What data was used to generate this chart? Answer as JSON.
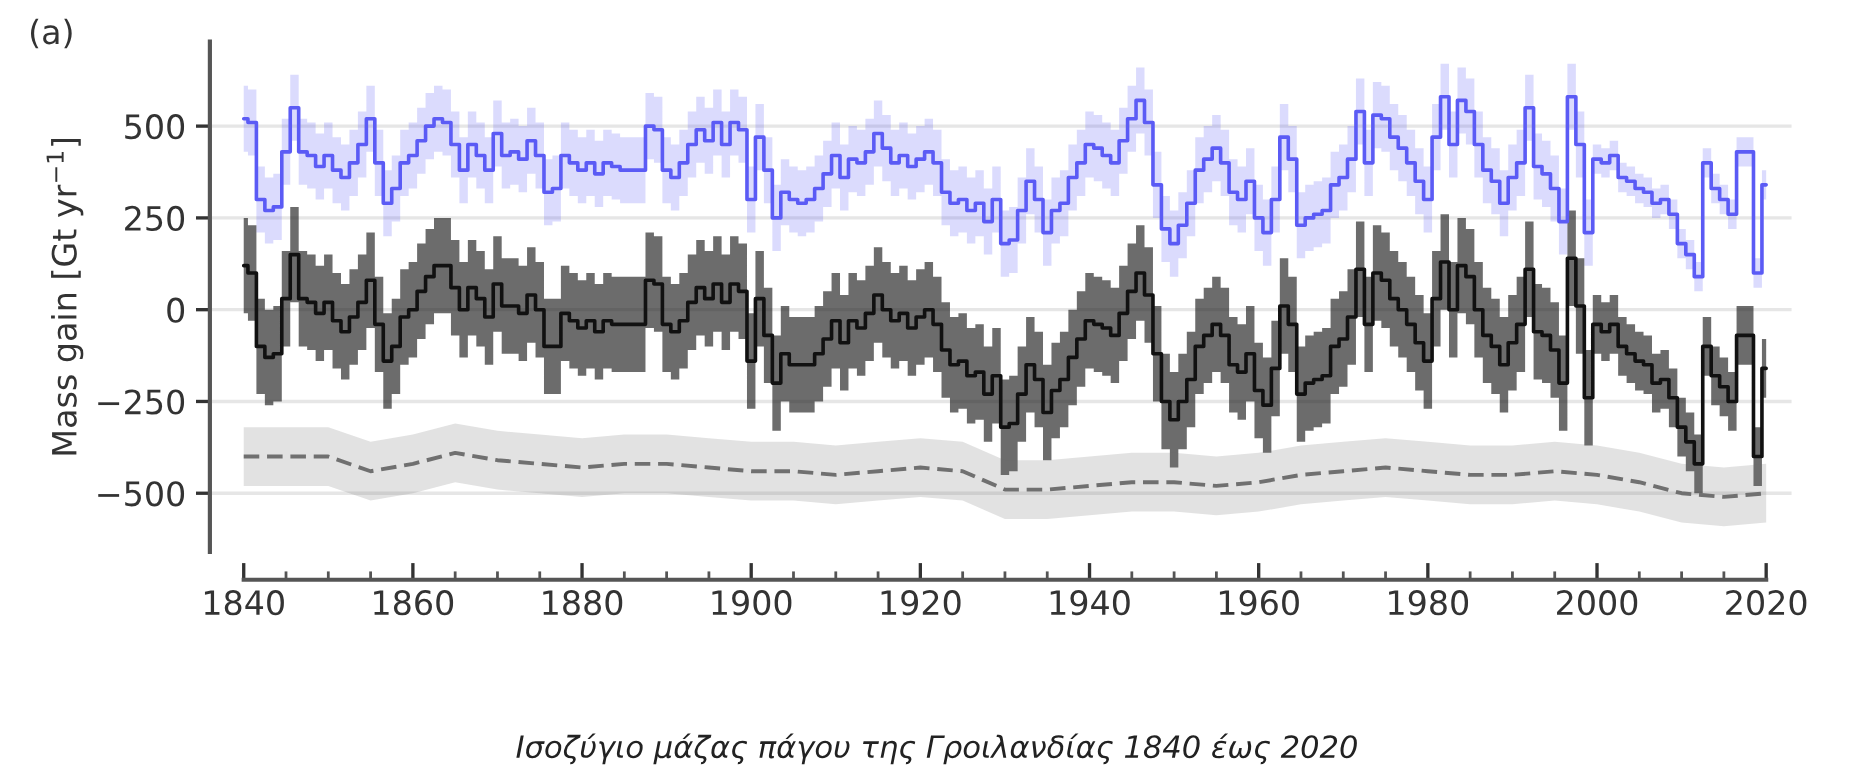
{
  "chart_data": {
    "type": "step",
    "ylabel": "Mass gain [Gt yr$^{−1}$]",
    "annotations": [
      "(a)",
      "Ισοζύγιο μάζας πάγου της Γροιλανδίας 1840 έως 2020"
    ],
    "xlim": [
      1836,
      2023
    ],
    "ylim": [
      -660,
      730
    ],
    "xticks": [
      1840,
      {
        "value": 1845,
        "label": null
      },
      {
        "value": 1850,
        "label": null
      },
      {
        "value": 1855,
        "label": null
      },
      1860,
      {
        "value": 1865,
        "label": null
      },
      {
        "value": 1870,
        "label": null
      },
      {
        "value": 1875,
        "label": null
      },
      1880,
      {
        "value": 1885,
        "label": null
      },
      {
        "value": 1890,
        "label": null
      },
      {
        "value": 1895,
        "label": null
      },
      1900,
      {
        "value": 1905,
        "label": null
      },
      {
        "value": 1910,
        "label": null
      },
      {
        "value": 1915,
        "label": null
      },
      1920,
      {
        "value": 1925,
        "label": null
      },
      {
        "value": 1930,
        "label": null
      },
      {
        "value": 1935,
        "label": null
      },
      1940,
      {
        "value": 1945,
        "label": null
      },
      {
        "value": 1950,
        "label": null
      },
      {
        "value": 1955,
        "label": null
      },
      1960,
      {
        "value": 1965,
        "label": null
      },
      {
        "value": 1970,
        "label": null
      },
      {
        "value": 1975,
        "label": null
      },
      1980,
      {
        "value": 1985,
        "label": null
      },
      {
        "value": 1990,
        "label": null
      },
      {
        "value": 1995,
        "label": null
      },
      2000,
      {
        "value": 2005,
        "label": null
      },
      {
        "value": 2010,
        "label": null
      },
      {
        "value": 2015,
        "label": null
      },
      2020
    ],
    "yticks": [
      {
        "value": -500,
        "label": "−500"
      },
      {
        "value": -250,
        "label": "−250"
      },
      0,
      250,
      500
    ],
    "grid": "y",
    "x": [
      1840,
      1841,
      1842,
      1843,
      1844,
      1845,
      1846,
      1847,
      1848,
      1849,
      1850,
      1851,
      1852,
      1853,
      1854,
      1855,
      1856,
      1857,
      1858,
      1859,
      1860,
      1861,
      1862,
      1863,
      1864,
      1865,
      1866,
      1867,
      1868,
      1869,
      1870,
      1871,
      1872,
      1873,
      1874,
      1875,
      1876,
      1877,
      1878,
      1879,
      1880,
      1881,
      1882,
      1883,
      1884,
      1885,
      1886,
      1887,
      1888,
      1889,
      1890,
      1891,
      1892,
      1893,
      1894,
      1895,
      1896,
      1897,
      1898,
      1899,
      1900,
      1901,
      1902,
      1903,
      1904,
      1905,
      1906,
      1907,
      1908,
      1909,
      1910,
      1911,
      1912,
      1913,
      1914,
      1915,
      1916,
      1917,
      1918,
      1919,
      1920,
      1921,
      1922,
      1923,
      1924,
      1925,
      1926,
      1927,
      1928,
      1929,
      1930,
      1931,
      1932,
      1933,
      1934,
      1935,
      1936,
      1937,
      1938,
      1939,
      1940,
      1941,
      1942,
      1943,
      1944,
      1945,
      1946,
      1947,
      1948,
      1949,
      1950,
      1951,
      1952,
      1953,
      1954,
      1955,
      1956,
      1957,
      1958,
      1959,
      1960,
      1961,
      1962,
      1963,
      1964,
      1965,
      1966,
      1967,
      1968,
      1969,
      1970,
      1971,
      1972,
      1973,
      1974,
      1975,
      1976,
      1977,
      1978,
      1979,
      1980,
      1981,
      1982,
      1983,
      1984,
      1985,
      1986,
      1987,
      1988,
      1989,
      1990,
      1991,
      1992,
      1993,
      1994,
      1995,
      1996,
      1997,
      1998,
      1999,
      2000,
      2001,
      2002,
      2003,
      2004,
      2005,
      2006,
      2007,
      2008,
      2009,
      2010,
      2011,
      2012,
      2013,
      2014,
      2015,
      2016,
      2017,
      2018,
      2019,
      2020
    ],
    "series": [
      {
        "color": "#5b5bf5",
        "values": [
          520,
          510,
          300,
          270,
          280,
          430,
          550,
          430,
          420,
          390,
          420,
          380,
          360,
          400,
          450,
          520,
          400,
          290,
          330,
          400,
          420,
          460,
          500,
          520,
          510,
          450,
          380,
          450,
          420,
          380,
          480,
          420,
          430,
          410,
          460,
          420,
          320,
          330,
          420,
          400,
          380,
          400,
          370,
          400,
          390,
          380,
          380,
          380,
          500,
          490,
          380,
          360,
          400,
          450,
          490,
          460,
          510,
          450,
          510,
          490,
          300,
          470,
          380,
          250,
          320,
          300,
          290,
          300,
          330,
          370,
          420,
          360,
          410,
          400,
          430,
          480,
          440,
          400,
          420,
          390,
          410,
          430,
          400,
          320,
          290,
          300,
          270,
          290,
          240,
          300,
          180,
          190,
          270,
          350,
          300,
          210,
          270,
          290,
          360,
          400,
          450,
          440,
          420,
          400,
          460,
          520,
          570,
          510,
          340,
          220,
          180,
          230,
          290,
          380,
          410,
          440,
          400,
          320,
          300,
          350,
          250,
          210,
          300,
          470,
          410,
          230,
          250,
          260,
          270,
          340,
          360,
          410,
          540,
          400,
          530,
          520,
          470,
          440,
          400,
          350,
          300,
          470,
          580,
          450,
          570,
          540,
          450,
          380,
          350,
          290,
          360,
          400,
          550,
          390,
          370,
          330,
          240,
          580,
          450,
          210,
          410,
          400,
          420,
          360,
          350,
          330,
          320,
          290,
          300,
          260,
          180,
          150,
          90,
          400,
          330,
          300,
          260,
          430,
          430,
          100,
          340
        ],
        "upper": [
          610,
          600,
          390,
          360,
          370,
          520,
          640,
          520,
          510,
          480,
          510,
          470,
          450,
          490,
          540,
          610,
          490,
          380,
          420,
          490,
          510,
          550,
          590,
          610,
          600,
          540,
          470,
          540,
          510,
          470,
          570,
          510,
          520,
          500,
          550,
          510,
          410,
          420,
          510,
          490,
          470,
          490,
          460,
          490,
          480,
          470,
          470,
          470,
          590,
          580,
          470,
          450,
          490,
          540,
          580,
          550,
          600,
          540,
          600,
          580,
          390,
          560,
          470,
          340,
          410,
          390,
          380,
          390,
          420,
          460,
          510,
          450,
          500,
          490,
          520,
          570,
          530,
          490,
          510,
          480,
          500,
          520,
          490,
          410,
          380,
          390,
          360,
          380,
          330,
          390,
          270,
          280,
          360,
          440,
          390,
          300,
          360,
          380,
          450,
          490,
          540,
          530,
          510,
          490,
          550,
          610,
          660,
          600,
          430,
          310,
          270,
          320,
          380,
          470,
          500,
          530,
          490,
          410,
          390,
          440,
          340,
          300,
          390,
          560,
          500,
          320,
          340,
          350,
          360,
          430,
          450,
          500,
          630,
          490,
          620,
          610,
          560,
          530,
          490,
          440,
          390,
          560,
          670,
          540,
          660,
          630,
          540,
          470,
          440,
          380,
          450,
          490,
          640,
          480,
          460,
          420,
          330,
          670,
          540,
          300,
          450,
          440,
          460,
          400,
          390,
          370,
          360,
          330,
          340,
          300,
          220,
          190,
          130,
          440,
          370,
          340,
          300,
          470,
          470,
          140,
          380
        ],
        "lower": [
          430,
          420,
          210,
          180,
          190,
          340,
          460,
          340,
          330,
          300,
          330,
          290,
          270,
          310,
          360,
          430,
          310,
          200,
          240,
          310,
          330,
          370,
          410,
          430,
          420,
          360,
          290,
          360,
          330,
          290,
          390,
          330,
          340,
          320,
          370,
          330,
          230,
          240,
          330,
          310,
          290,
          310,
          280,
          310,
          300,
          290,
          290,
          290,
          410,
          400,
          290,
          270,
          310,
          360,
          400,
          370,
          420,
          360,
          420,
          400,
          210,
          380,
          290,
          160,
          230,
          210,
          200,
          210,
          240,
          280,
          330,
          270,
          320,
          310,
          340,
          390,
          350,
          310,
          330,
          300,
          320,
          340,
          310,
          230,
          200,
          210,
          180,
          200,
          150,
          210,
          90,
          100,
          180,
          260,
          210,
          120,
          180,
          200,
          270,
          310,
          360,
          350,
          330,
          310,
          370,
          430,
          480,
          420,
          250,
          130,
          90,
          140,
          200,
          290,
          320,
          350,
          310,
          230,
          210,
          260,
          160,
          120,
          210,
          380,
          320,
          140,
          160,
          170,
          180,
          250,
          270,
          320,
          450,
          310,
          440,
          430,
          380,
          350,
          310,
          260,
          210,
          380,
          490,
          360,
          480,
          450,
          360,
          290,
          260,
          200,
          270,
          310,
          460,
          300,
          280,
          240,
          150,
          490,
          360,
          120,
          370,
          360,
          380,
          320,
          310,
          290,
          280,
          250,
          260,
          220,
          140,
          110,
          50,
          360,
          290,
          260,
          220,
          390,
          390,
          60,
          300
        ]
      },
      {
        "color": "#111111",
        "values": [
          120,
          100,
          -100,
          -130,
          -120,
          30,
          150,
          30,
          20,
          -10,
          20,
          -30,
          -60,
          -20,
          20,
          80,
          -40,
          -140,
          -100,
          -20,
          0,
          50,
          90,
          120,
          120,
          60,
          0,
          60,
          30,
          -20,
          70,
          10,
          10,
          -10,
          40,
          0,
          -100,
          -100,
          -10,
          -30,
          -50,
          -30,
          -60,
          -30,
          -40,
          -40,
          -40,
          -40,
          80,
          70,
          -40,
          -60,
          -30,
          20,
          60,
          30,
          70,
          20,
          70,
          50,
          -140,
          30,
          -70,
          -200,
          -120,
          -150,
          -150,
          -150,
          -120,
          -80,
          -30,
          -90,
          -30,
          -50,
          -10,
          40,
          0,
          -30,
          -10,
          -50,
          -20,
          0,
          -40,
          -110,
          -150,
          -140,
          -180,
          -170,
          -230,
          -180,
          -320,
          -310,
          -230,
          -150,
          -190,
          -280,
          -220,
          -190,
          -130,
          -80,
          -30,
          -40,
          -50,
          -70,
          -10,
          50,
          100,
          40,
          -120,
          -250,
          -300,
          -250,
          -190,
          -100,
          -70,
          -40,
          -70,
          -150,
          -170,
          -120,
          -220,
          -260,
          -160,
          10,
          -40,
          -230,
          -200,
          -190,
          -180,
          -100,
          -80,
          -20,
          110,
          -40,
          100,
          80,
          30,
          0,
          -40,
          -90,
          -140,
          30,
          130,
          0,
          120,
          90,
          0,
          -70,
          -100,
          -150,
          -90,
          -40,
          110,
          -60,
          -70,
          -110,
          -200,
          140,
          10,
          -240,
          -40,
          -60,
          -40,
          -100,
          -120,
          -140,
          -150,
          -200,
          -190,
          -240,
          -320,
          -360,
          -420,
          -100,
          -180,
          -210,
          -250,
          -70,
          -70,
          -400,
          -160
        ],
        "upper": [
          250,
          230,
          30,
          0,
          10,
          160,
          280,
          160,
          150,
          120,
          150,
          100,
          70,
          110,
          150,
          210,
          90,
          -10,
          30,
          110,
          130,
          180,
          220,
          250,
          250,
          190,
          130,
          190,
          160,
          110,
          200,
          140,
          140,
          120,
          170,
          130,
          30,
          30,
          120,
          100,
          80,
          100,
          70,
          100,
          90,
          90,
          90,
          90,
          210,
          200,
          90,
          70,
          100,
          150,
          190,
          160,
          200,
          150,
          200,
          180,
          -10,
          160,
          60,
          -70,
          10,
          -20,
          -20,
          -20,
          10,
          50,
          100,
          40,
          100,
          80,
          120,
          170,
          130,
          100,
          120,
          80,
          110,
          130,
          90,
          20,
          -20,
          -10,
          -50,
          -40,
          -100,
          -50,
          -190,
          -180,
          -100,
          -20,
          -60,
          -150,
          -90,
          -60,
          0,
          50,
          100,
          90,
          80,
          60,
          120,
          180,
          230,
          170,
          10,
          -120,
          -170,
          -120,
          -60,
          30,
          60,
          90,
          60,
          -20,
          -40,
          10,
          -90,
          -130,
          -30,
          140,
          90,
          -100,
          -70,
          -60,
          -50,
          30,
          50,
          110,
          240,
          90,
          230,
          210,
          160,
          130,
          90,
          40,
          -10,
          160,
          260,
          130,
          250,
          220,
          130,
          60,
          30,
          -20,
          40,
          90,
          240,
          70,
          60,
          20,
          -70,
          270,
          140,
          -110,
          40,
          20,
          40,
          -20,
          -40,
          -60,
          -70,
          -120,
          -110,
          -160,
          -240,
          -280,
          -340,
          -20,
          -100,
          -130,
          -170,
          10,
          10,
          -320,
          -80
        ],
        "lower": [
          -10,
          -30,
          -230,
          -260,
          -250,
          -100,
          20,
          -100,
          -110,
          -140,
          -110,
          -160,
          -190,
          -150,
          -110,
          -50,
          -170,
          -270,
          -230,
          -150,
          -130,
          -80,
          -40,
          -10,
          -10,
          -70,
          -130,
          -70,
          -100,
          -150,
          -60,
          -120,
          -120,
          -140,
          -90,
          -130,
          -230,
          -230,
          -140,
          -160,
          -180,
          -160,
          -190,
          -160,
          -170,
          -170,
          -170,
          -170,
          -50,
          -60,
          -170,
          -190,
          -160,
          -110,
          -70,
          -100,
          -60,
          -110,
          -60,
          -80,
          -270,
          -100,
          -200,
          -330,
          -250,
          -280,
          -280,
          -280,
          -250,
          -210,
          -160,
          -220,
          -160,
          -180,
          -140,
          -90,
          -130,
          -160,
          -140,
          -180,
          -150,
          -130,
          -170,
          -240,
          -280,
          -270,
          -310,
          -300,
          -360,
          -310,
          -450,
          -440,
          -360,
          -280,
          -320,
          -410,
          -350,
          -320,
          -260,
          -210,
          -160,
          -170,
          -180,
          -200,
          -140,
          -80,
          -30,
          -90,
          -250,
          -380,
          -430,
          -380,
          -320,
          -230,
          -200,
          -170,
          -200,
          -280,
          -300,
          -250,
          -350,
          -390,
          -290,
          -120,
          -170,
          -360,
          -330,
          -320,
          -310,
          -230,
          -210,
          -150,
          -20,
          -170,
          -30,
          -50,
          -100,
          -130,
          -170,
          -220,
          -270,
          -100,
          0,
          -130,
          -10,
          -40,
          -130,
          -200,
          -230,
          -280,
          -220,
          -170,
          -20,
          -190,
          -200,
          -240,
          -330,
          10,
          -120,
          -370,
          -120,
          -140,
          -120,
          -180,
          -200,
          -220,
          -230,
          -280,
          -270,
          -320,
          -400,
          -440,
          -500,
          -180,
          -260,
          -290,
          -330,
          -150,
          -150,
          -480,
          -240
        ]
      },
      {
        "type": "line",
        "line_style": "dashed",
        "color": "#707070",
        "x": [
          1840,
          1845,
          1850,
          1855,
          1860,
          1865,
          1870,
          1875,
          1880,
          1885,
          1890,
          1895,
          1900,
          1905,
          1910,
          1915,
          1920,
          1925,
          1930,
          1935,
          1940,
          1945,
          1950,
          1955,
          1960,
          1965,
          1970,
          1975,
          1980,
          1985,
          1990,
          1995,
          2000,
          2005,
          2010,
          2015,
          2020
        ],
        "values": [
          -400,
          -400,
          -400,
          -440,
          -420,
          -390,
          -410,
          -420,
          -430,
          -420,
          -420,
          -430,
          -440,
          -440,
          -450,
          -440,
          -430,
          -440,
          -490,
          -490,
          -480,
          -470,
          -470,
          -480,
          -470,
          -450,
          -440,
          -430,
          -440,
          -450,
          -450,
          -440,
          -450,
          -470,
          -500,
          -510,
          -500
        ],
        "upper": [
          -320,
          -320,
          -320,
          -360,
          -340,
          -310,
          -330,
          -340,
          -350,
          -340,
          -340,
          -350,
          -360,
          -360,
          -370,
          -360,
          -350,
          -360,
          -410,
          -410,
          -400,
          -390,
          -390,
          -400,
          -390,
          -370,
          -360,
          -350,
          -360,
          -370,
          -370,
          -360,
          -370,
          -390,
          -420,
          -430,
          -420
        ],
        "lower": [
          -480,
          -480,
          -480,
          -520,
          -500,
          -470,
          -490,
          -500,
          -510,
          -500,
          -500,
          -510,
          -520,
          -520,
          -530,
          -520,
          -510,
          -520,
          -570,
          -570,
          -560,
          -550,
          -550,
          -560,
          -550,
          -530,
          -520,
          -510,
          -520,
          -530,
          -530,
          -520,
          -530,
          -550,
          -580,
          -590,
          -580
        ]
      }
    ]
  }
}
